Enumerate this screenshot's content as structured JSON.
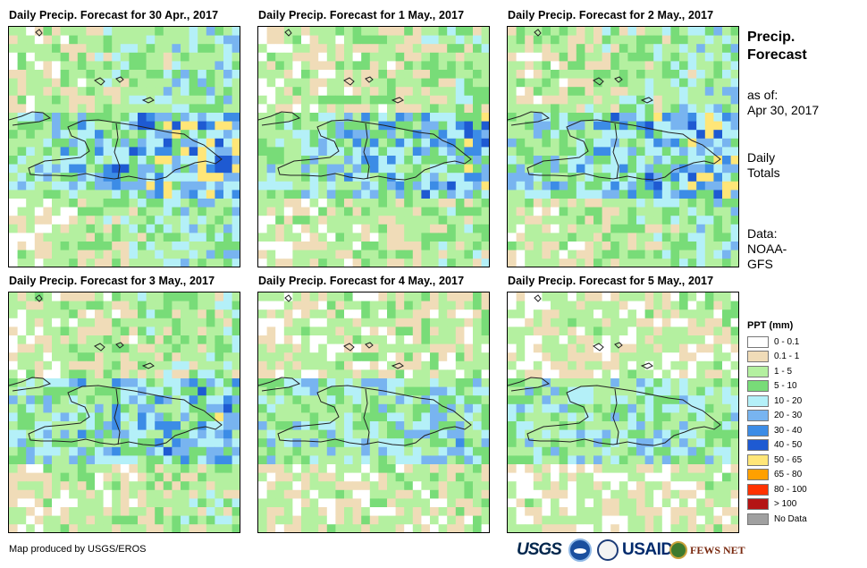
{
  "panels": [
    {
      "title": "Daily Precip. Forecast for 30 Apr., 2017"
    },
    {
      "title": "Daily Precip. Forecast for 1 May., 2017"
    },
    {
      "title": "Daily Precip. Forecast for 2 May., 2017"
    },
    {
      "title": "Daily Precip. Forecast for 3 May., 2017"
    },
    {
      "title": "Daily Precip. Forecast for 4 May., 2017"
    },
    {
      "title": "Daily Precip. Forecast for 5 May., 2017"
    }
  ],
  "side": {
    "title_line1": "Precip.",
    "title_line2": "Forecast",
    "asof_label": "as of:",
    "asof_date": "Apr 30, 2017",
    "totals_line1": "Daily",
    "totals_line2": "Totals",
    "data_line1": "Data:",
    "data_line2": "NOAA-",
    "data_line3": "GFS"
  },
  "legend": {
    "title": "PPT (mm)",
    "items": [
      {
        "label": "0 - 0.1",
        "color": "#ffffff"
      },
      {
        "label": "0.1 - 1",
        "color": "#f0dcb8"
      },
      {
        "label": "1 - 5",
        "color": "#b4f0a0"
      },
      {
        "label": "5 - 10",
        "color": "#78dc78"
      },
      {
        "label": "10 - 20",
        "color": "#b4f0f8"
      },
      {
        "label": "20 - 30",
        "color": "#78b4f0"
      },
      {
        "label": "30 - 40",
        "color": "#3c8ce6"
      },
      {
        "label": "40 - 50",
        "color": "#1e5ad2"
      },
      {
        "label": "50 - 65",
        "color": "#ffe678"
      },
      {
        "label": "65 - 80",
        "color": "#ffa000"
      },
      {
        "label": "80 - 100",
        "color": "#ff3200"
      },
      {
        "label": "> 100",
        "color": "#b41414"
      },
      {
        "label": "No Data",
        "color": "#a0a0a0"
      }
    ]
  },
  "credit": "Map produced by USGS/EROS",
  "logos": {
    "usgs": "USGS",
    "usaid": "USAID",
    "fews": "FEWS NET"
  }
}
